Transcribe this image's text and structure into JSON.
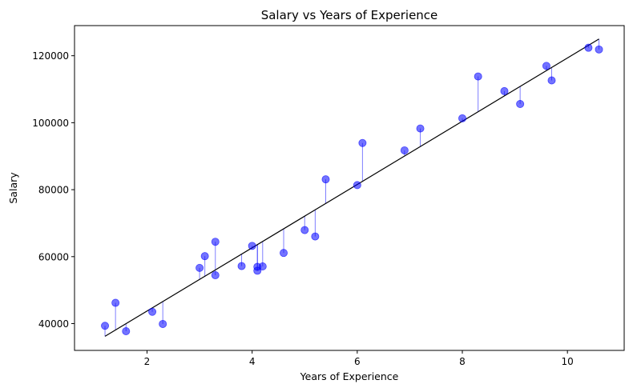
{
  "chart_data": {
    "type": "scatter",
    "title": "Salary vs Years of Experience",
    "xlabel": "Years of Experience",
    "ylabel": "Salary",
    "xlim": [
      0.62,
      11.08
    ],
    "ylim": [
      32000,
      129000
    ],
    "xticks": [
      2,
      4,
      6,
      8,
      10
    ],
    "yticks": [
      40000,
      60000,
      80000,
      100000,
      120000
    ],
    "xtick_labels": [
      "2",
      "4",
      "6",
      "8",
      "10"
    ],
    "ytick_labels": [
      "40000",
      "60000",
      "80000",
      "100000",
      "120000"
    ],
    "grid": false,
    "legend": false,
    "colors": {
      "points": "#0000ff",
      "residual_lines": "#0000ff",
      "regression_line": "#000000"
    },
    "regression_line": {
      "x": [
        1.2,
        10.6
      ],
      "y": [
        36200,
        125000
      ]
    },
    "points": {
      "x": [
        1.2,
        1.4,
        1.6,
        2.1,
        2.3,
        3.0,
        3.1,
        3.3,
        3.3,
        3.8,
        4.0,
        4.1,
        4.1,
        4.2,
        4.6,
        5.0,
        5.2,
        5.4,
        6.0,
        6.1,
        6.9,
        7.2,
        8.0,
        8.3,
        8.8,
        9.1,
        9.6,
        9.7,
        10.4,
        10.6
      ],
      "y": [
        39343,
        46205,
        37731,
        43525,
        39891,
        56642,
        60150,
        54445,
        64445,
        57189,
        63218,
        55794,
        56957,
        57081,
        61111,
        67938,
        66029,
        83088,
        81363,
        93940,
        91738,
        98273,
        101302,
        113812,
        109431,
        105582,
        116969,
        112635,
        122391,
        121872
      ]
    }
  }
}
